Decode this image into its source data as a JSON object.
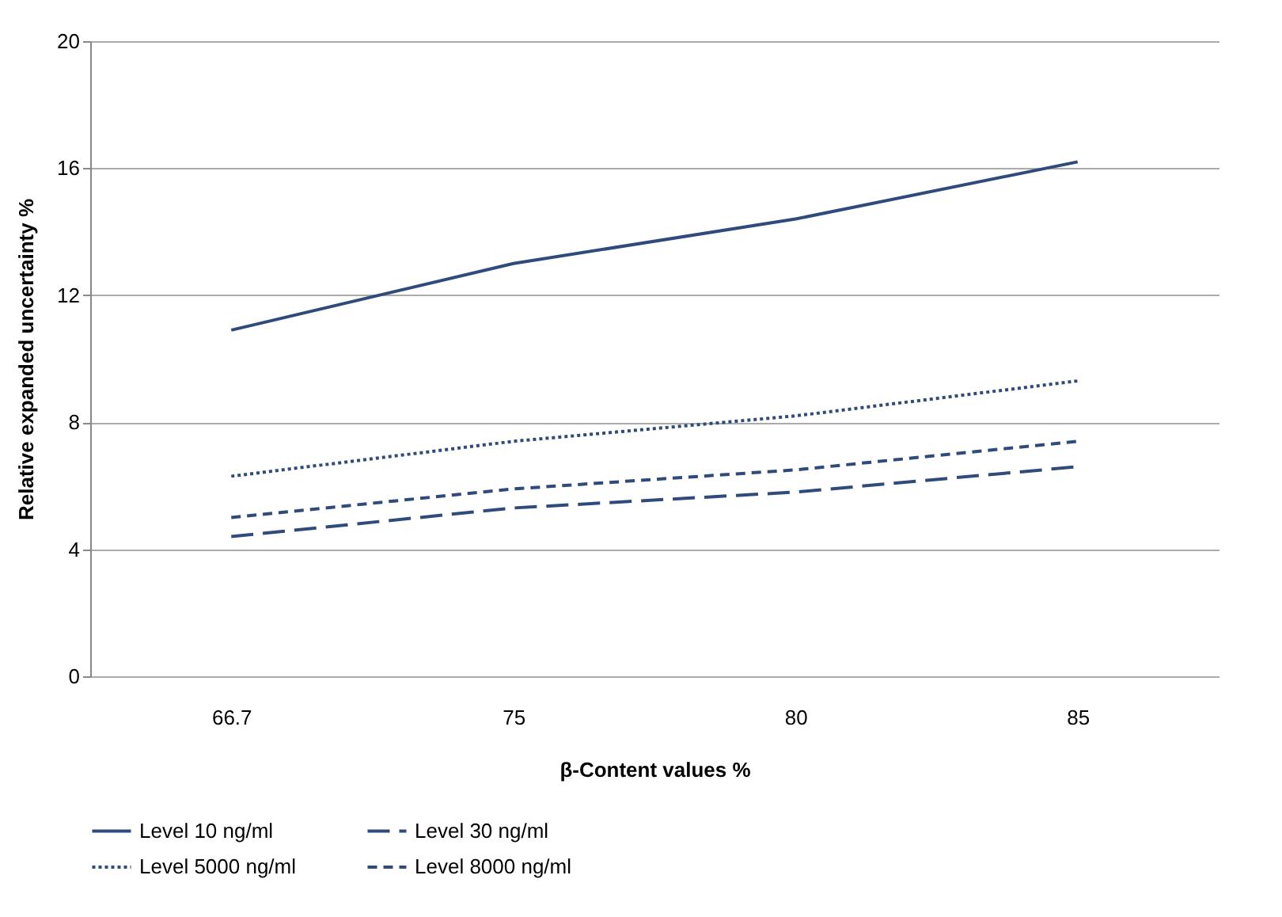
{
  "chart_data": {
    "type": "line",
    "xlabel": "β-Content values %",
    "ylabel": "Relative expanded uncertainty %",
    "categories": [
      "66.7",
      "75",
      "80",
      "85"
    ],
    "series": [
      {
        "name": "Level 10 ng/ml",
        "color": "#2f4b7c",
        "line_style": "solid",
        "values": [
          10.9,
          13.0,
          14.4,
          16.2
        ]
      },
      {
        "name": "Level 30 ng/ml",
        "color": "#2f4b7c",
        "line_style": "dashed",
        "values": [
          4.4,
          5.3,
          5.8,
          6.6
        ]
      },
      {
        "name": "Level 5000 ng/ml",
        "color": "#2f4b7c",
        "line_style": "dotted",
        "values": [
          6.3,
          7.4,
          8.2,
          9.3
        ]
      },
      {
        "name": "Level 8000 ng/ml",
        "color": "#2f4b7c",
        "line_style": "dashed",
        "values": [
          5.0,
          5.9,
          6.5,
          7.4
        ]
      }
    ],
    "ylim": [
      0,
      20
    ],
    "yticks": [
      0,
      4,
      8,
      12,
      16,
      20
    ],
    "grid": "y",
    "legend": "bottom",
    "marker": "none"
  }
}
